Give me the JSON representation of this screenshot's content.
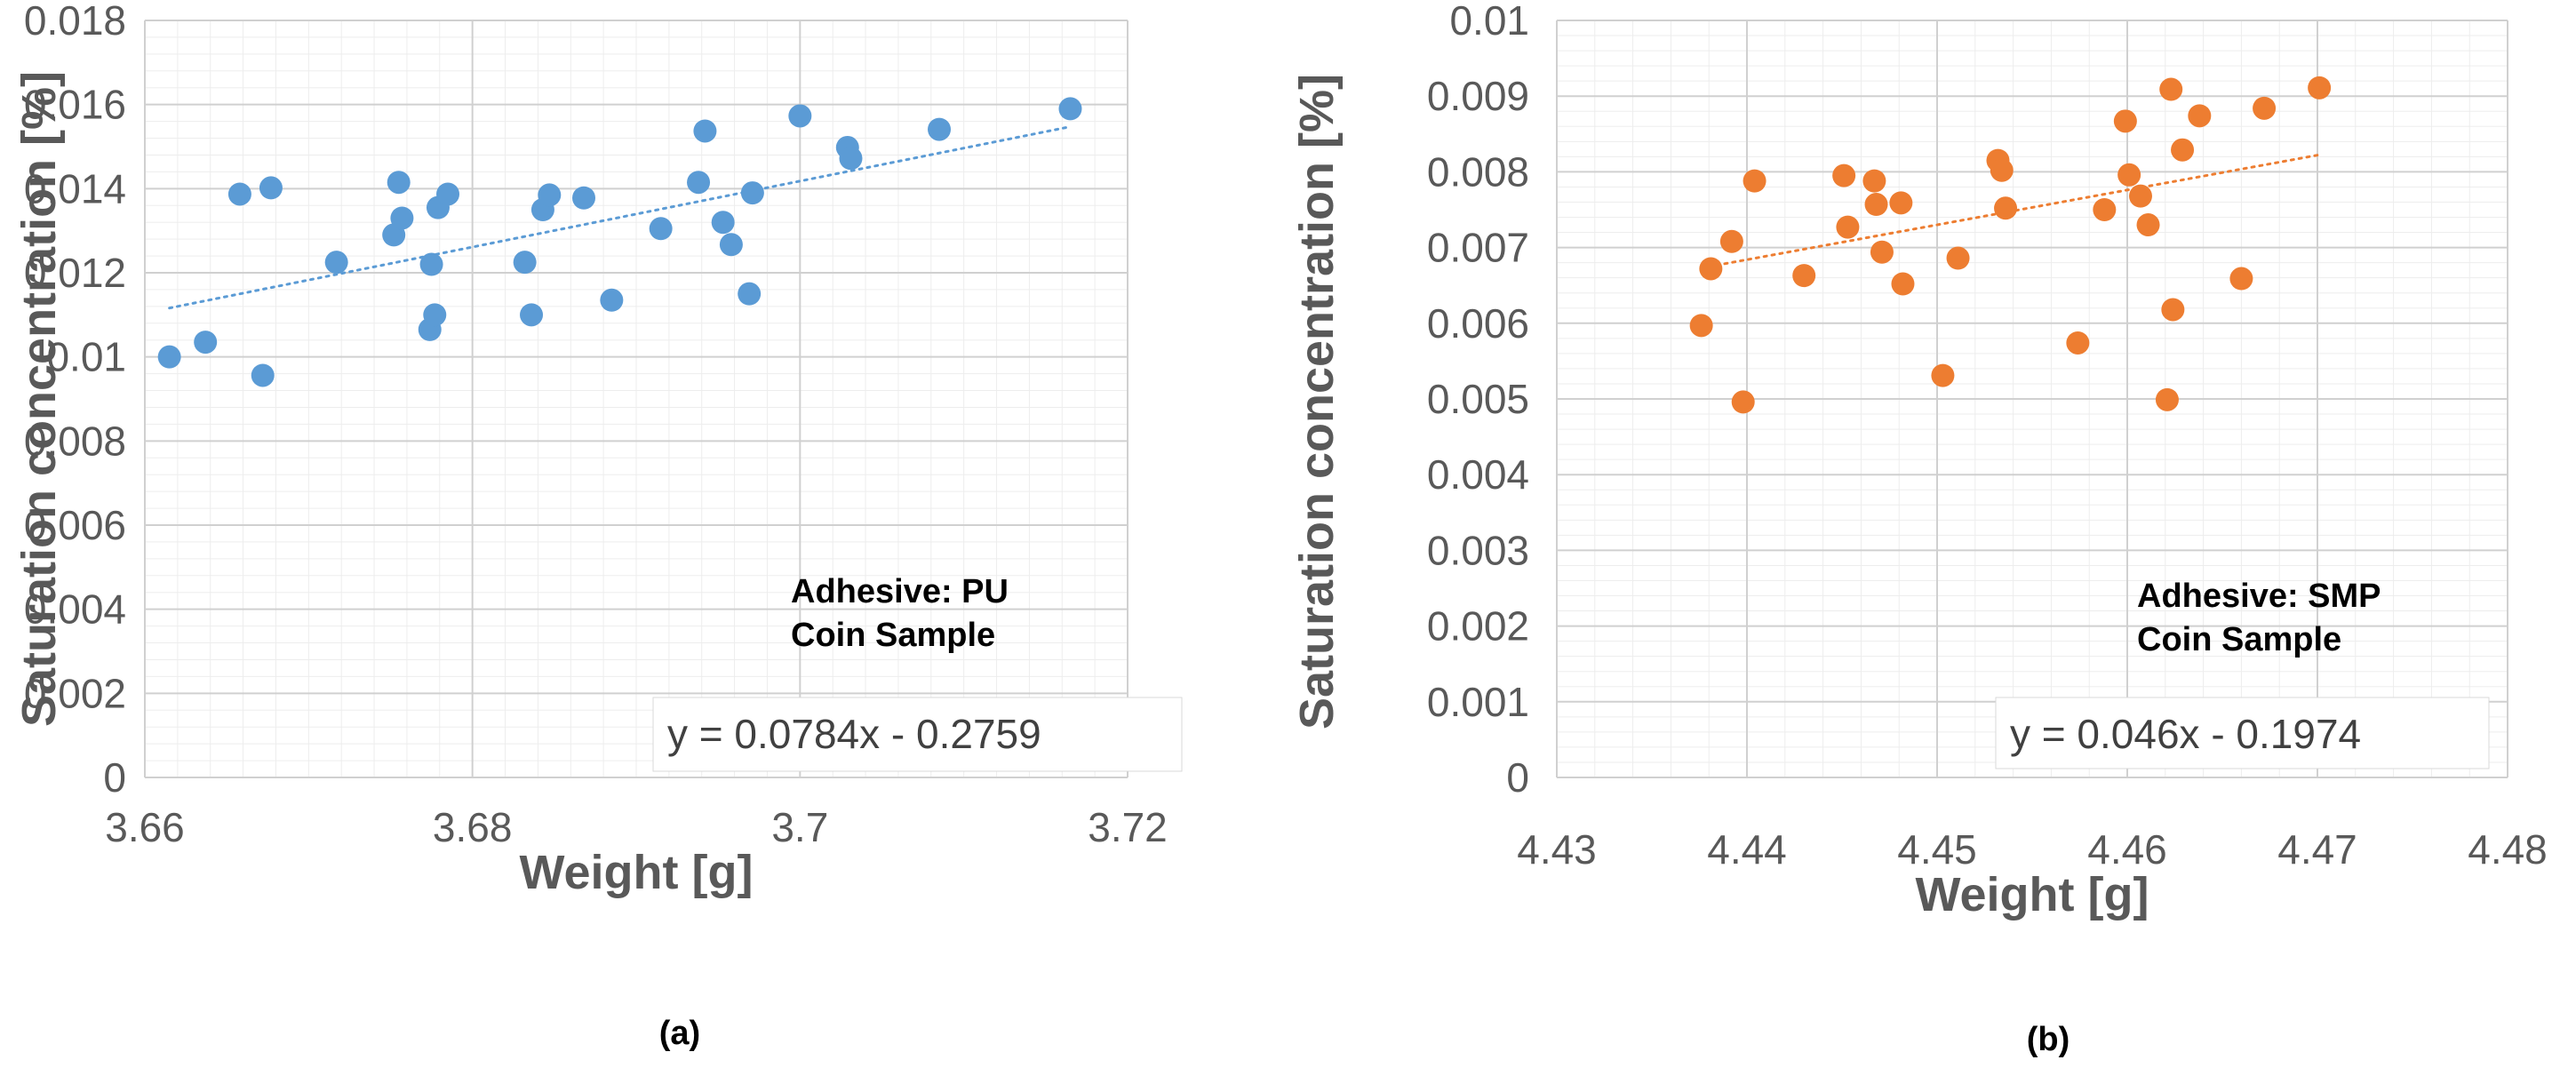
{
  "chart_data": [
    {
      "type": "scatter",
      "panel_label": "(a)",
      "title": "",
      "xlabel": "Weight [g]",
      "ylabel": "Saturation concentration [%]",
      "xlim": [
        3.66,
        3.72
      ],
      "ylim": [
        0,
        0.018
      ],
      "x_ticks": [
        "3.66",
        "3.68",
        "3.7",
        "3.72"
      ],
      "y_ticks": [
        "0",
        "0.002",
        "0.004",
        "0.006",
        "0.008",
        "0.01",
        "0.012",
        "0.014",
        "0.016",
        "0.018"
      ],
      "x_tick_values": [
        3.66,
        3.68,
        3.7,
        3.72
      ],
      "y_tick_values": [
        0,
        0.002,
        0.004,
        0.006,
        0.008,
        0.01,
        0.012,
        0.014,
        0.016,
        0.018
      ],
      "x_minor_step": 0.002,
      "y_minor_step": 0.0004,
      "annotation_lines": [
        "Adhesive: PU",
        "Coin Sample"
      ],
      "trendline_label": "y = 0.0784x - 0.2759",
      "trendline": {
        "slope": 0.0784,
        "intercept": -0.2759,
        "x_start": 3.6615,
        "x_end": 3.7165
      },
      "marker_color": "#5B9BD5",
      "series": [
        {
          "name": "PU",
          "points": [
            [
              3.6615,
              0.01
            ],
            [
              3.6637,
              0.01035
            ],
            [
              3.6658,
              0.01387
            ],
            [
              3.6672,
              0.00956
            ],
            [
              3.6677,
              0.01402
            ],
            [
              3.6717,
              0.01225
            ],
            [
              3.6752,
              0.0129
            ],
            [
              3.6755,
              0.01415
            ],
            [
              3.6757,
              0.0133
            ],
            [
              3.6774,
              0.01065
            ],
            [
              3.6775,
              0.0122
            ],
            [
              3.6777,
              0.011
            ],
            [
              3.6779,
              0.01355
            ],
            [
              3.6785,
              0.01387
            ],
            [
              3.6832,
              0.01225
            ],
            [
              3.6836,
              0.011
            ],
            [
              3.6843,
              0.0135
            ],
            [
              3.6847,
              0.01385
            ],
            [
              3.6868,
              0.01378
            ],
            [
              3.6885,
              0.01135
            ],
            [
              3.6915,
              0.01305
            ],
            [
              3.6938,
              0.01415
            ],
            [
              3.6942,
              0.01537
            ],
            [
              3.6953,
              0.0132
            ],
            [
              3.6958,
              0.01267
            ],
            [
              3.6969,
              0.0115
            ],
            [
              3.6971,
              0.0139
            ],
            [
              3.7,
              0.01573
            ],
            [
              3.7029,
              0.01498
            ],
            [
              3.7031,
              0.01472
            ],
            [
              3.7085,
              0.01541
            ],
            [
              3.7165,
              0.0159
            ]
          ]
        }
      ]
    },
    {
      "type": "scatter",
      "panel_label": "(b)",
      "title": "",
      "xlabel": "Weight [g]",
      "ylabel": "Saturation concentration [%]",
      "xlim": [
        4.43,
        4.48
      ],
      "ylim": [
        0,
        0.01
      ],
      "x_ticks": [
        "4.43",
        "4.44",
        "4.45",
        "4.46",
        "4.47",
        "4.48"
      ],
      "y_ticks": [
        "0",
        "0.001",
        "0.002",
        "0.003",
        "0.004",
        "0.005",
        "0.006",
        "0.007",
        "0.008",
        "0.009",
        "0.01"
      ],
      "x_tick_values": [
        4.43,
        4.44,
        4.45,
        4.46,
        4.47,
        4.48
      ],
      "y_tick_values": [
        0,
        0.001,
        0.002,
        0.003,
        0.004,
        0.005,
        0.006,
        0.007,
        0.008,
        0.009,
        0.01
      ],
      "x_minor_step": 0.002,
      "y_minor_step": 0.0002,
      "annotation_lines": [
        "Adhesive: SMP",
        "Coin Sample"
      ],
      "trendline_label": "y = 0.046x - 0.1974",
      "trendline": {
        "slope": 0.046,
        "intercept": -0.1974,
        "x_start": 4.438,
        "x_end": 4.47
      },
      "marker_color": "#ED7D31",
      "series": [
        {
          "name": "SMP",
          "points": [
            [
              4.4376,
              0.00597
            ],
            [
              4.4381,
              0.00672
            ],
            [
              4.4392,
              0.00708
            ],
            [
              4.4398,
              0.00496
            ],
            [
              4.4404,
              0.00788
            ],
            [
              4.443,
              0.00663
            ],
            [
              4.4451,
              0.00795
            ],
            [
              4.4453,
              0.00727
            ],
            [
              4.4467,
              0.00788
            ],
            [
              4.4468,
              0.00757
            ],
            [
              4.4471,
              0.00694
            ],
            [
              4.4481,
              0.00759
            ],
            [
              4.4482,
              0.00652
            ],
            [
              4.4511,
              0.00686
            ],
            [
              4.4503,
              0.00531
            ],
            [
              4.4532,
              0.00815
            ],
            [
              4.4534,
              0.00802
            ],
            [
              4.4536,
              0.00752
            ],
            [
              4.4574,
              0.00574
            ],
            [
              4.4588,
              0.0075
            ],
            [
              4.4599,
              0.00867
            ],
            [
              4.4601,
              0.00796
            ],
            [
              4.4607,
              0.00768
            ],
            [
              4.4611,
              0.0073
            ],
            [
              4.4621,
              0.00499
            ],
            [
              4.4623,
              0.00909
            ],
            [
              4.4624,
              0.00618
            ],
            [
              4.4629,
              0.00829
            ],
            [
              4.4638,
              0.00874
            ],
            [
              4.466,
              0.00659
            ],
            [
              4.4672,
              0.00884
            ],
            [
              4.4701,
              0.00911
            ]
          ]
        }
      ]
    }
  ]
}
